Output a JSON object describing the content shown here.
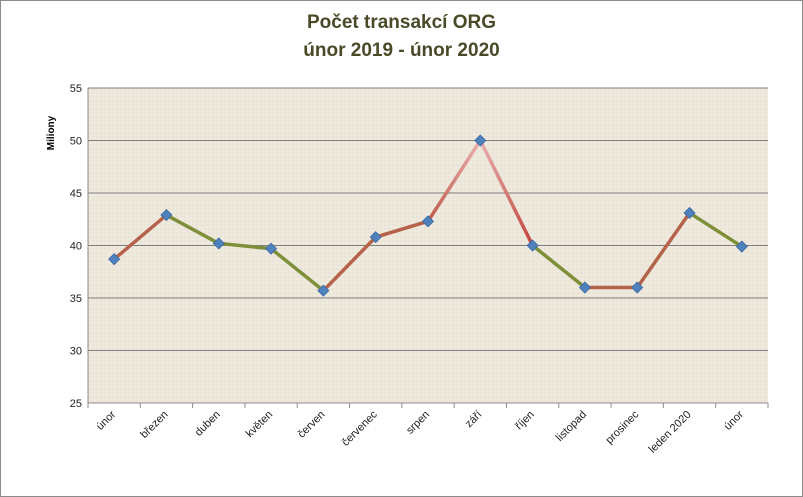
{
  "chart_data": {
    "type": "line",
    "title": "Počet transakcí ORG",
    "subtitle": "únor  2019 - únor 2020",
    "ylabel": "Miliony",
    "xlabel": "",
    "ylim": [
      25,
      55
    ],
    "yticks": [
      25,
      30,
      35,
      40,
      45,
      50,
      55
    ],
    "grid": true,
    "legend": "none",
    "categories": [
      "únor",
      "březen",
      "duben",
      "květen",
      "červen",
      "červenec",
      "srpen",
      "září",
      "říjen",
      "listopad",
      "prosinec",
      "leden 2020",
      "únor"
    ],
    "series": [
      {
        "values": [
          38.7,
          42.9,
          40.2,
          39.7,
          35.7,
          40.8,
          42.3,
          50.0,
          40.0,
          36.0,
          36.0,
          43.1,
          39.9
        ]
      }
    ],
    "colors": {
      "up": "#b5634a",
      "down": "#7e8f3a",
      "peak_up": "#e0a3a3",
      "peak_down": "#c2574f",
      "marker": "#4f81bd",
      "plot_bg": "#eee8dc",
      "grid": "#7f7f7f"
    }
  }
}
